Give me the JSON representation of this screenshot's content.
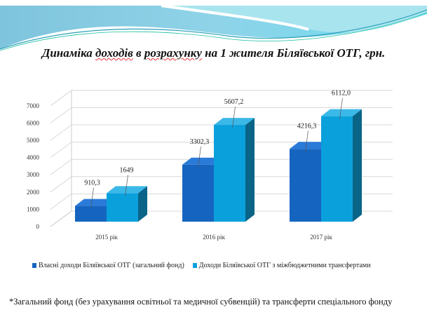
{
  "title": {
    "part1": "Динаміка ",
    "part2": "доходів",
    "part3": " в ",
    "part4": "розрахунку",
    "part5": " на 1 жителя Біляївської ОТГ, грн."
  },
  "colors": {
    "series1": "#1565c0",
    "series2": "#0aa0dc"
  },
  "chart_data": {
    "type": "bar",
    "title": "Динаміка доходів в розрахунку на 1 жителя Біляївської ОТГ, грн.",
    "categories": [
      "2015 рік",
      "2016 рік",
      "2017 рік"
    ],
    "series": [
      {
        "name": "Власні доходи Біляївської ОТГ (загальний фонд)",
        "values": [
          910.3,
          3302.3,
          4216.3
        ],
        "labels": [
          "910,3",
          "3302,3",
          "4216,3"
        ]
      },
      {
        "name": "Доходи  Біляївської ОТГ з міжбюджетними трансфертами",
        "values": [
          1649,
          5607.2,
          6112.0
        ],
        "labels": [
          "1649",
          "5607,2",
          "6112,0"
        ]
      }
    ],
    "yticks": [
      "0",
      "1000",
      "2000",
      "3000",
      "4000",
      "5000",
      "6000",
      "7000"
    ],
    "ylim": [
      0,
      7000
    ],
    "legend": "bottom"
  },
  "footnote": "*Загальний фонд (без урахування освітньої та медичної субвенцій) та трансферти спеціального фонду"
}
